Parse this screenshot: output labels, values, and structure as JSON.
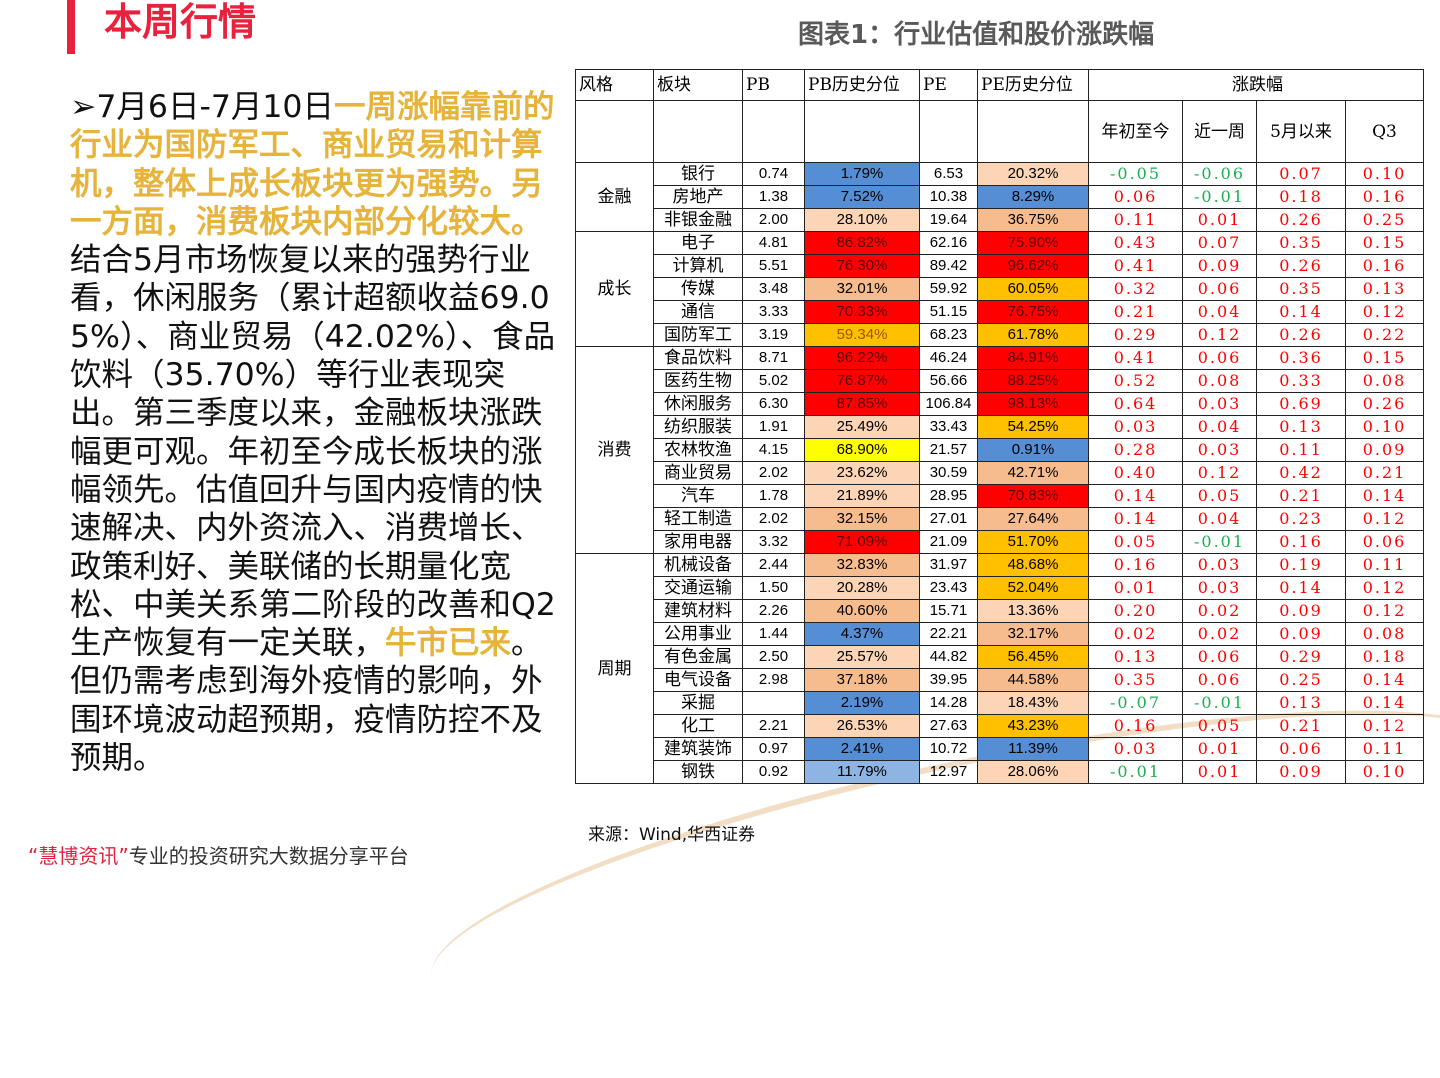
{
  "header": {
    "title": "本周行情"
  },
  "body": {
    "bullet": "➢7月6日-7月10日",
    "highlight1": "一周涨幅靠前的行业为国防军工、商业贸易和计算机，整体上成长板块更为强势。另一方面，消费板块内部分化较大。",
    "text1": "结合5月市场恢复以来的强势行业看，休闲服务（累计超额收益69.05%）、商业贸易（42.02%）、食品饮料（35.70%）等行业表现突出。第三季度以来，金融板块涨跌幅更可观。年初至今成长板块的涨幅领先。估值回升与国内疫情的快速解决、内外资流入、消费增长、政策利好、美联储的长期量化宽松、中美关系第二阶段的改善和Q2生产恢复有一定关联，",
    "highlight2": "牛市已来",
    "text2": "。但仍需考虑到海外疫情的影响，外围环境波动超预期，疫情防控不及预期。"
  },
  "figure": {
    "title": "图表1：行业估值和股价涨跌幅",
    "headers": {
      "style": "风格",
      "sector": "板块",
      "pb": "PB",
      "pb_pct": "PB历史分位",
      "pe": "PE",
      "pe_pct": "PE历史分位",
      "change": "涨跌幅",
      "ytd": "年初至今",
      "week": "近一周",
      "since_may": "5月以来",
      "q3": "Q3"
    },
    "colors": {
      "blue": "#558ED5",
      "lblue": "#8EB4E3",
      "light": "#FBD5B5",
      "peach": "#F6BC8D",
      "red": "#FF0000",
      "orange": "#FFC000",
      "yellow": "#FFFF00",
      "white": "#FFFFFF"
    },
    "groups": [
      {
        "name": "金融",
        "rows": [
          [
            "银行",
            "0.74",
            "1.79%",
            "blue",
            "6.53",
            "20.32%",
            "light",
            "-0.05",
            "-0.06",
            "0.07",
            "0.10"
          ],
          [
            "房地产",
            "1.38",
            "7.52%",
            "blue",
            "10.38",
            "8.29%",
            "blue",
            "0.06",
            "-0.01",
            "0.18",
            "0.16"
          ],
          [
            "非银金融",
            "2.00",
            "28.10%",
            "light",
            "19.64",
            "36.75%",
            "peach",
            "0.11",
            "0.01",
            "0.26",
            "0.25"
          ]
        ]
      },
      {
        "name": "成长",
        "rows": [
          [
            "电子",
            "4.81",
            "86.82%",
            "red",
            "62.16",
            "75.90%",
            "red",
            "0.43",
            "0.07",
            "0.35",
            "0.15"
          ],
          [
            "计算机",
            "5.51",
            "76.30%",
            "red",
            "89.42",
            "96.62%",
            "red",
            "0.41",
            "0.09",
            "0.26",
            "0.16"
          ],
          [
            "传媒",
            "3.48",
            "32.01%",
            "peach",
            "59.92",
            "60.05%",
            "orange",
            "0.32",
            "0.06",
            "0.35",
            "0.13"
          ],
          [
            "通信",
            "3.33",
            "70.33%",
            "red",
            "51.15",
            "76.75%",
            "red",
            "0.21",
            "0.04",
            "0.14",
            "0.12"
          ],
          [
            "国防军工",
            "3.19",
            "59.34%",
            "orange",
            "68.23",
            "61.78%",
            "orange",
            "0.29",
            "0.12",
            "0.26",
            "0.22"
          ]
        ]
      },
      {
        "name": "消费",
        "rows": [
          [
            "食品饮料",
            "8.71",
            "96.22%",
            "red",
            "46.24",
            "84.91%",
            "red",
            "0.41",
            "0.06",
            "0.36",
            "0.15"
          ],
          [
            "医药生物",
            "5.02",
            "76.87%",
            "red",
            "56.66",
            "88.25%",
            "red",
            "0.52",
            "0.08",
            "0.33",
            "0.08"
          ],
          [
            "休闲服务",
            "6.30",
            "87.85%",
            "red",
            "106.84",
            "98.13%",
            "red",
            "0.64",
            "0.03",
            "0.69",
            "0.26"
          ],
          [
            "纺织服装",
            "1.91",
            "25.49%",
            "light",
            "33.43",
            "54.25%",
            "orange",
            "0.03",
            "0.04",
            "0.13",
            "0.10"
          ],
          [
            "农林牧渔",
            "4.15",
            "68.90%",
            "yellow",
            "21.57",
            "0.91%",
            "blue",
            "0.28",
            "0.03",
            "0.11",
            "0.09"
          ],
          [
            "商业贸易",
            "2.02",
            "23.62%",
            "light",
            "30.59",
            "42.71%",
            "peach",
            "0.40",
            "0.12",
            "0.42",
            "0.21"
          ],
          [
            "汽车",
            "1.78",
            "21.89%",
            "light",
            "28.95",
            "70.83%",
            "red",
            "0.14",
            "0.05",
            "0.21",
            "0.14"
          ],
          [
            "轻工制造",
            "2.02",
            "32.15%",
            "peach",
            "27.01",
            "27.64%",
            "peach",
            "0.14",
            "0.04",
            "0.23",
            "0.12"
          ],
          [
            "家用电器",
            "3.32",
            "71.09%",
            "red",
            "21.09",
            "51.70%",
            "orange",
            "0.05",
            "-0.01",
            "0.16",
            "0.06"
          ]
        ]
      },
      {
        "name": "周期",
        "rows": [
          [
            "机械设备",
            "2.44",
            "32.83%",
            "peach",
            "31.97",
            "48.68%",
            "orange",
            "0.16",
            "0.03",
            "0.19",
            "0.11"
          ],
          [
            "交通运输",
            "1.50",
            "20.28%",
            "light",
            "23.43",
            "52.04%",
            "orange",
            "0.01",
            "0.03",
            "0.14",
            "0.12"
          ],
          [
            "建筑材料",
            "2.26",
            "40.60%",
            "peach",
            "15.71",
            "13.36%",
            "light",
            "0.20",
            "0.02",
            "0.09",
            "0.12"
          ],
          [
            "公用事业",
            "1.44",
            "4.37%",
            "blue",
            "22.21",
            "32.17%",
            "peach",
            "0.02",
            "0.02",
            "0.09",
            "0.08"
          ],
          [
            "有色金属",
            "2.50",
            "25.57%",
            "light",
            "44.82",
            "56.45%",
            "orange",
            "0.13",
            "0.06",
            "0.29",
            "0.18"
          ],
          [
            "电气设备",
            "2.98",
            "37.18%",
            "peach",
            "39.95",
            "44.58%",
            "peach",
            "0.35",
            "0.06",
            "0.25",
            "0.14"
          ],
          [
            "采掘",
            "",
            "2.19%",
            "blue",
            "14.28",
            "18.43%",
            "light",
            "-0.07",
            "-0.01",
            "0.13",
            "0.14"
          ],
          [
            "化工",
            "2.21",
            "26.53%",
            "light",
            "27.63",
            "43.23%",
            "orange",
            "0.16",
            "0.05",
            "0.21",
            "0.12"
          ],
          [
            "建筑装饰",
            "0.97",
            "2.41%",
            "blue",
            "10.72",
            "11.39%",
            "blue",
            "0.03",
            "0.01",
            "0.06",
            "0.11"
          ],
          [
            "钢铁",
            "0.92",
            "11.79%",
            "lblue",
            "12.97",
            "28.06%",
            "light",
            "-0.01",
            "0.01",
            "0.09",
            "0.10"
          ]
        ]
      }
    ],
    "source": "来源：Wind,华西证券"
  },
  "footer": {
    "brand": "“慧博资讯”",
    "tagline": "专业的投资研究大数据分享平台"
  }
}
